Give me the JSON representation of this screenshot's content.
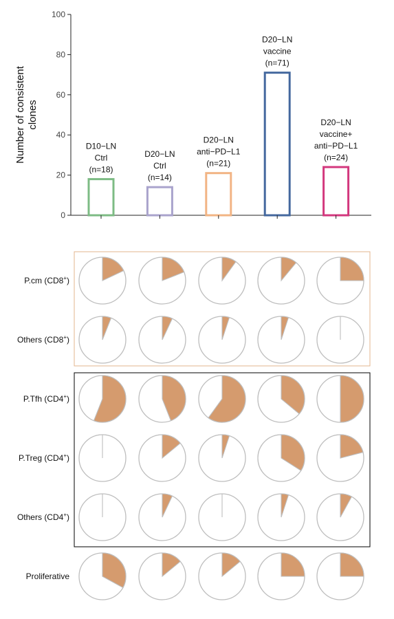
{
  "chart_data": [
    {
      "type": "bar",
      "ylabel": "Number of consistent clones",
      "ylabel_lines": [
        "Number of consistent",
        "clones"
      ],
      "ylim": [
        0,
        100
      ],
      "yticks": [
        0,
        20,
        40,
        60,
        80,
        100
      ],
      "grid": false,
      "bar_style": "hollow",
      "categories": [
        {
          "lines": [
            "D10−LN",
            "Ctrl",
            "(n=18)"
          ],
          "color": "#7dbb84"
        },
        {
          "lines": [
            "D20−LN",
            "Ctrl",
            "(n=14)"
          ],
          "color": "#a9a3cc"
        },
        {
          "lines": [
            "D20−LN",
            "anti−PD−L1",
            "(n=21)"
          ],
          "color": "#f2b484"
        },
        {
          "lines": [
            "D20−LN",
            "vaccine",
            "(n=71)"
          ],
          "color": "#44689e"
        },
        {
          "lines": [
            "D20−LN",
            "vaccine+",
            "anti−PD−L1",
            "(n=24)"
          ],
          "color": "#d3387e"
        }
      ],
      "values": [
        18,
        14,
        21,
        71,
        24
      ]
    },
    {
      "type": "pie",
      "fill_color": "#d59b6e",
      "groups": [
        {
          "name": "CD8",
          "frame_color": "#e3b48e",
          "rows": [
            {
              "label": "P.cm (CD8",
              "sup": "+",
              "tail": ")",
              "fractions": [
                0.18,
                0.19,
                0.1,
                0.11,
                0.25
              ]
            },
            {
              "label": "Others (CD8",
              "sup": "+",
              "tail": ")",
              "fractions": [
                0.06,
                0.07,
                0.05,
                0.05,
                0.0
              ]
            }
          ]
        },
        {
          "name": "CD4",
          "frame_color": "#000000",
          "rows": [
            {
              "label": "P.Tfh (CD4",
              "sup": "+",
              "tail": ")",
              "fractions": [
                0.56,
                0.44,
                0.6,
                0.36,
                0.5
              ]
            },
            {
              "label": "P.Treg (CD4",
              "sup": "+",
              "tail": ")",
              "fractions": [
                0.0,
                0.14,
                0.05,
                0.34,
                0.21
              ]
            },
            {
              "label": "Others (CD4",
              "sup": "+",
              "tail": ")",
              "fractions": [
                0.0,
                0.07,
                0.0,
                0.05,
                0.08
              ]
            }
          ]
        },
        {
          "name": "none",
          "frame_color": "",
          "rows": [
            {
              "label": "Proliferative",
              "sup": "",
              "tail": "",
              "fractions": [
                0.33,
                0.14,
                0.14,
                0.25,
                0.25
              ]
            }
          ]
        }
      ]
    }
  ]
}
